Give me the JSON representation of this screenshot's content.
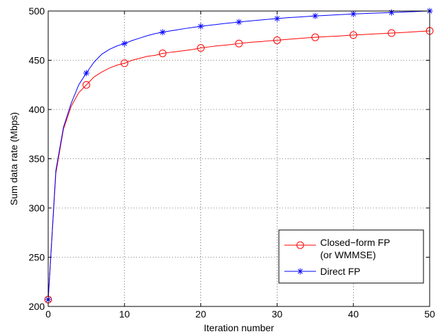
{
  "chart_data": {
    "type": "line",
    "title": "",
    "xlabel": "Iteration number",
    "ylabel": "Sum data rate (Mbps)",
    "xlim": [
      0,
      50
    ],
    "ylim": [
      200,
      500
    ],
    "xticks": [
      0,
      10,
      20,
      30,
      40,
      50
    ],
    "yticks": [
      200,
      250,
      300,
      350,
      400,
      450,
      500
    ],
    "grid": true,
    "legend_position": "bottom-right",
    "series": [
      {
        "name": "Closed−form FP\n(or WMMSE)",
        "legend_lines": [
          "Closed−form FP",
          "(or WMMSE)"
        ],
        "color": "#ff0000",
        "marker": "circle",
        "marker_every": 5,
        "x": [
          0,
          1,
          2,
          3,
          4,
          5,
          6,
          7,
          8,
          9,
          10,
          11,
          12,
          13,
          14,
          15,
          16,
          17,
          18,
          19,
          20,
          21,
          22,
          23,
          24,
          25,
          26,
          27,
          28,
          29,
          30,
          31,
          32,
          33,
          34,
          35,
          36,
          37,
          38,
          39,
          40,
          41,
          42,
          43,
          44,
          45,
          46,
          47,
          48,
          49,
          50
        ],
        "y": [
          207,
          335,
          380,
          403,
          417,
          425,
          433,
          438,
          442,
          445,
          447,
          450,
          452,
          454,
          455,
          457,
          458,
          459,
          460,
          461,
          462.5,
          463.5,
          464.5,
          465.2,
          466,
          467,
          467.8,
          468.5,
          469,
          469.8,
          470.3,
          471,
          471.6,
          472.2,
          472.8,
          473.3,
          473.8,
          474.2,
          474.6,
          475.1,
          475.6,
          476,
          476.4,
          476.8,
          477.2,
          477.6,
          478,
          478.4,
          478.9,
          479.4,
          479.8
        ]
      },
      {
        "name": "Direct FP",
        "legend_lines": [
          "Direct FP"
        ],
        "color": "#0000ff",
        "marker": "star",
        "marker_every": 5,
        "x": [
          0,
          1,
          2,
          3,
          4,
          5,
          6,
          7,
          8,
          9,
          10,
          11,
          12,
          13,
          14,
          15,
          16,
          17,
          18,
          19,
          20,
          21,
          22,
          23,
          24,
          25,
          26,
          27,
          28,
          29,
          30,
          31,
          32,
          33,
          34,
          35,
          36,
          37,
          38,
          39,
          40,
          41,
          42,
          43,
          44,
          45,
          46,
          47,
          48,
          49,
          50
        ],
        "y": [
          207,
          338,
          382,
          406,
          425,
          437,
          448,
          456,
          461,
          464.5,
          467,
          470,
          472.5,
          475,
          477,
          478.5,
          479.8,
          481,
          482.3,
          483.4,
          484.5,
          485.4,
          486.3,
          487.2,
          488,
          488.8,
          489.6,
          490.3,
          491,
          491.7,
          492.3,
          493,
          493.5,
          494,
          494.5,
          495,
          495.4,
          495.8,
          496.2,
          496.6,
          497,
          497.3,
          497.6,
          497.9,
          498.2,
          498.5,
          498.8,
          499.1,
          499.4,
          499.7,
          500
        ]
      }
    ]
  }
}
